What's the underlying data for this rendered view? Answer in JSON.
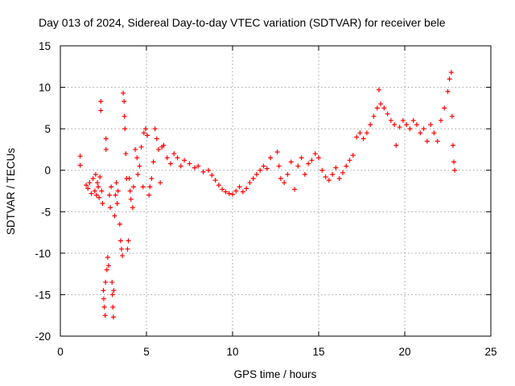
{
  "chart_data": {
    "type": "scatter",
    "title": "Day 013 of 2024, Sidereal Day-to-day VTEC variation (SDTVAR) for receiver bele",
    "xlabel": "GPS time / hours",
    "ylabel": "SDTVAR / TECUs",
    "xlim": [
      0,
      25
    ],
    "ylim": [
      -20,
      15
    ],
    "xticks": [
      0,
      5,
      10,
      15,
      20,
      25
    ],
    "yticks": [
      -20,
      -15,
      -10,
      -5,
      0,
      5,
      10,
      15
    ],
    "grid": true,
    "marker": "+",
    "color": "#ff0000",
    "series": [
      {
        "name": "SDTVAR",
        "points": [
          [
            1.15,
            1.7
          ],
          [
            1.15,
            0.6
          ],
          [
            1.5,
            -1.8
          ],
          [
            1.6,
            -2.2
          ],
          [
            1.7,
            -1.5
          ],
          [
            1.8,
            -2.8
          ],
          [
            1.9,
            -1.0
          ],
          [
            2.0,
            -2.5
          ],
          [
            2.05,
            -0.5
          ],
          [
            2.1,
            -3.0
          ],
          [
            2.15,
            -1.5
          ],
          [
            2.2,
            -2.0
          ],
          [
            2.25,
            -3.3
          ],
          [
            2.3,
            -0.8
          ],
          [
            2.35,
            8.3
          ],
          [
            2.35,
            7.2
          ],
          [
            2.4,
            -2.5
          ],
          [
            2.45,
            -4.0
          ],
          [
            2.5,
            -14.5
          ],
          [
            2.52,
            -15.5
          ],
          [
            2.55,
            -16.5
          ],
          [
            2.6,
            -17.5
          ],
          [
            2.62,
            -13.5
          ],
          [
            2.65,
            3.8
          ],
          [
            2.65,
            2.5
          ],
          [
            2.7,
            -12.0
          ],
          [
            2.75,
            -10.5
          ],
          [
            2.8,
            -11.5
          ],
          [
            2.85,
            -3.0
          ],
          [
            2.9,
            -4.5
          ],
          [
            2.95,
            -2.0
          ],
          [
            3.0,
            -13.5
          ],
          [
            3.02,
            -15.0
          ],
          [
            3.05,
            -16.5
          ],
          [
            3.08,
            -17.7
          ],
          [
            3.1,
            -14.5
          ],
          [
            3.15,
            -5.5
          ],
          [
            3.2,
            -3.0
          ],
          [
            3.25,
            -1.5
          ],
          [
            3.3,
            -4.0
          ],
          [
            3.35,
            -2.5
          ],
          [
            3.45,
            -6.5
          ],
          [
            3.5,
            -8.5
          ],
          [
            3.55,
            -9.5
          ],
          [
            3.6,
            -10.3
          ],
          [
            3.65,
            9.3
          ],
          [
            3.7,
            8.3
          ],
          [
            3.72,
            6.5
          ],
          [
            3.75,
            5.0
          ],
          [
            3.8,
            2.0
          ],
          [
            3.85,
            -1.0
          ],
          [
            3.9,
            -9.5
          ],
          [
            3.95,
            -8.5
          ],
          [
            4.0,
            -1.0
          ],
          [
            4.05,
            -2.5
          ],
          [
            4.1,
            -3.5
          ],
          [
            4.2,
            -4.5
          ],
          [
            4.25,
            -2.0
          ],
          [
            4.35,
            2.5
          ],
          [
            4.45,
            1.5
          ],
          [
            4.5,
            -0.5
          ],
          [
            4.6,
            0.5
          ],
          [
            4.7,
            2.8
          ],
          [
            4.8,
            -2.0
          ],
          [
            4.85,
            4.5
          ],
          [
            4.95,
            5.0
          ],
          [
            5.05,
            4.2
          ],
          [
            5.15,
            -3.0
          ],
          [
            5.2,
            -2.0
          ],
          [
            5.3,
            -1.0
          ],
          [
            5.4,
            1.0
          ],
          [
            5.5,
            5.0
          ],
          [
            5.6,
            3.8
          ],
          [
            5.7,
            2.5
          ],
          [
            5.8,
            -1.5
          ],
          [
            5.9,
            2.8
          ],
          [
            6.0,
            3.0
          ],
          [
            6.2,
            1.5
          ],
          [
            6.4,
            0.8
          ],
          [
            6.6,
            2.0
          ],
          [
            6.8,
            1.5
          ],
          [
            7.0,
            0.5
          ],
          [
            7.2,
            1.2
          ],
          [
            7.5,
            0.8
          ],
          [
            7.8,
            0.3
          ],
          [
            8.0,
            0.5
          ],
          [
            8.3,
            -0.2
          ],
          [
            8.6,
            0.0
          ],
          [
            8.8,
            -0.6
          ],
          [
            9.0,
            -1.2
          ],
          [
            9.2,
            -1.8
          ],
          [
            9.4,
            -2.3
          ],
          [
            9.6,
            -2.6
          ],
          [
            9.8,
            -2.8
          ],
          [
            10.0,
            -2.9
          ],
          [
            10.2,
            -2.5
          ],
          [
            10.4,
            -2.0
          ],
          [
            10.6,
            -2.6
          ],
          [
            10.8,
            -2.2
          ],
          [
            11.0,
            -1.5
          ],
          [
            11.2,
            -1.0
          ],
          [
            11.4,
            -0.5
          ],
          [
            11.6,
            0.0
          ],
          [
            11.8,
            0.5
          ],
          [
            12.0,
            0.2
          ],
          [
            12.2,
            1.5
          ],
          [
            12.6,
            2.2
          ],
          [
            12.7,
            0.5
          ],
          [
            12.8,
            -1.0
          ],
          [
            13.0,
            -1.5
          ],
          [
            13.2,
            -0.5
          ],
          [
            13.4,
            1.0
          ],
          [
            13.6,
            -2.3
          ],
          [
            13.8,
            0.5
          ],
          [
            14.0,
            1.5
          ],
          [
            14.2,
            -0.5
          ],
          [
            14.4,
            0.8
          ],
          [
            14.6,
            1.2
          ],
          [
            14.8,
            2.0
          ],
          [
            15.0,
            1.5
          ],
          [
            15.2,
            0.0
          ],
          [
            15.4,
            -0.8
          ],
          [
            15.6,
            -1.2
          ],
          [
            15.8,
            -0.5
          ],
          [
            16.0,
            0.3
          ],
          [
            16.2,
            -1.0
          ],
          [
            16.4,
            -0.3
          ],
          [
            16.6,
            0.5
          ],
          [
            16.8,
            1.2
          ],
          [
            17.0,
            1.8
          ],
          [
            17.2,
            4.0
          ],
          [
            17.4,
            4.5
          ],
          [
            17.6,
            3.8
          ],
          [
            17.8,
            4.5
          ],
          [
            18.0,
            5.5
          ],
          [
            18.2,
            6.5
          ],
          [
            18.4,
            7.5
          ],
          [
            18.5,
            9.7
          ],
          [
            18.6,
            8.0
          ],
          [
            18.8,
            7.5
          ],
          [
            19.0,
            6.8
          ],
          [
            19.2,
            6.0
          ],
          [
            19.4,
            5.5
          ],
          [
            19.5,
            3.0
          ],
          [
            19.7,
            5.2
          ],
          [
            19.9,
            6.0
          ],
          [
            20.1,
            5.5
          ],
          [
            20.3,
            5.0
          ],
          [
            20.5,
            6.0
          ],
          [
            20.7,
            5.5
          ],
          [
            20.9,
            4.5
          ],
          [
            21.1,
            5.0
          ],
          [
            21.3,
            3.5
          ],
          [
            21.5,
            5.5
          ],
          [
            21.7,
            4.5
          ],
          [
            21.9,
            3.5
          ],
          [
            22.1,
            6.0
          ],
          [
            22.3,
            7.5
          ],
          [
            22.5,
            9.5
          ],
          [
            22.6,
            11.0
          ],
          [
            22.7,
            11.8
          ],
          [
            22.75,
            6.5
          ],
          [
            22.8,
            3.0
          ],
          [
            22.85,
            1.0
          ],
          [
            22.9,
            0.0
          ]
        ]
      }
    ]
  }
}
